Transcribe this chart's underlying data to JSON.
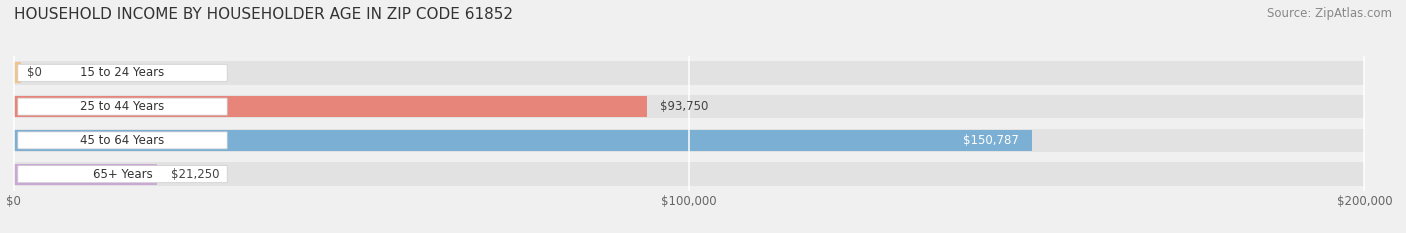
{
  "title": "HOUSEHOLD INCOME BY HOUSEHOLDER AGE IN ZIP CODE 61852",
  "source": "Source: ZipAtlas.com",
  "categories": [
    "15 to 24 Years",
    "25 to 44 Years",
    "45 to 64 Years",
    "65+ Years"
  ],
  "values": [
    0,
    93750,
    150787,
    21250
  ],
  "bar_colors": [
    "#f0c48a",
    "#e8857a",
    "#7bafd4",
    "#c9a8d4"
  ],
  "value_labels": [
    "$0",
    "$93,750",
    "$150,787",
    "$21,250"
  ],
  "label_inside": [
    false,
    false,
    true,
    false
  ],
  "xlim_max": 200000,
  "xtick_values": [
    0,
    100000,
    200000
  ],
  "xtick_labels": [
    "$0",
    "$100,000",
    "$200,000"
  ],
  "bg_color": "#f0f0f0",
  "bar_bg_color": "#e2e2e2",
  "title_fontsize": 11,
  "source_fontsize": 8.5,
  "bar_height": 0.62,
  "figsize": [
    14.06,
    2.33
  ],
  "dpi": 100
}
